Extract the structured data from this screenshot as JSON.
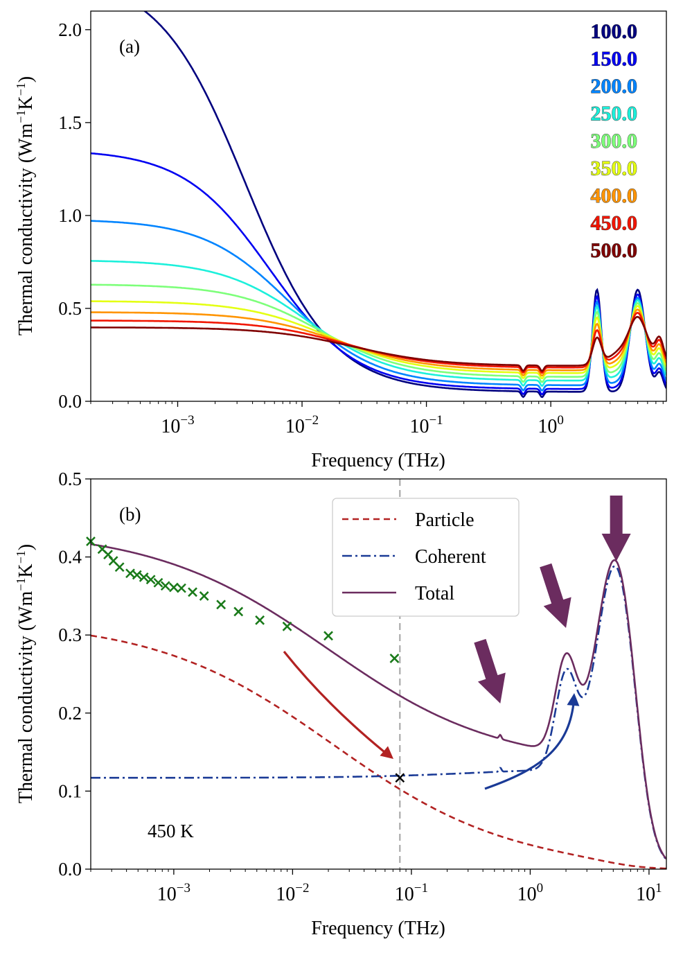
{
  "chart_data": [
    {
      "panel": "(a)",
      "type": "line",
      "xscale": "log",
      "xlim": [
        0.0002,
        8.5
      ],
      "ylim": [
        0.0,
        2.1
      ],
      "xlabel": "Frequency (THz)",
      "ylabel_main": "Thermal conductivity (Wm",
      "ylabel_sup1": "−1",
      "ylabel_mid": "K",
      "ylabel_sup2": "−1",
      "ylabel_end": ")",
      "xtick_base": "10",
      "xticks": [
        {
          "value": 0.001,
          "exp": "−3"
        },
        {
          "value": 0.01,
          "exp": "−2"
        },
        {
          "value": 0.1,
          "exp": "−1"
        },
        {
          "value": 1,
          "exp": "0"
        }
      ],
      "yticks": [
        {
          "value": 0.0,
          "label": "0.0"
        },
        {
          "value": 0.5,
          "label": "0.5"
        },
        {
          "value": 1.0,
          "label": "1.0"
        },
        {
          "value": 1.5,
          "label": "1.5"
        },
        {
          "value": 2.0,
          "label": "2.0"
        }
      ],
      "legend_position": "top-right",
      "series": [
        {
          "name": "100.0",
          "color": "#00007f",
          "k0": 2.3,
          "tau_half": 0.0035,
          "min": 0.05,
          "tail": 0.3
        },
        {
          "name": "150.0",
          "color": "#0000f1",
          "k0": 1.355,
          "tau_half": 0.0055,
          "min": 0.065,
          "tail": 0.29
        },
        {
          "name": "200.0",
          "color": "#0084ff",
          "k0": 0.98,
          "tau_half": 0.008,
          "min": 0.085,
          "tail": 0.28
        },
        {
          "name": "250.0",
          "color": "#1cf0db",
          "k0": 0.76,
          "tau_half": 0.011,
          "min": 0.11,
          "tail": 0.27
        },
        {
          "name": "300.0",
          "color": "#7dff7a",
          "k0": 0.63,
          "tau_half": 0.014,
          "min": 0.13,
          "tail": 0.26
        },
        {
          "name": "350.0",
          "color": "#e4ff13",
          "k0": 0.54,
          "tau_half": 0.017,
          "min": 0.15,
          "tail": 0.25
        },
        {
          "name": "400.0",
          "color": "#ff9400",
          "k0": 0.48,
          "tau_half": 0.02,
          "min": 0.165,
          "tail": 0.245
        },
        {
          "name": "450.0",
          "color": "#f11500",
          "k0": 0.435,
          "tau_half": 0.023,
          "min": 0.18,
          "tail": 0.24
        },
        {
          "name": "500.0",
          "color": "#7f0000",
          "k0": 0.398,
          "tau_half": 0.026,
          "min": 0.19,
          "tail": 0.235
        }
      ]
    },
    {
      "panel": "(b)",
      "type": "line",
      "xscale": "log",
      "xlim": [
        0.0002,
        14
      ],
      "ylim": [
        0.0,
        0.5
      ],
      "xlabel": "Frequency (THz)",
      "ylabel_main": "Thermal conductivity (Wm",
      "ylabel_sup1": "−1",
      "ylabel_mid": "K",
      "ylabel_sup2": "−1",
      "ylabel_end": ")",
      "annotation": "450 K",
      "crossover_frequency": 0.08,
      "crossover_value": 0.117,
      "xtick_base": "10",
      "xticks": [
        {
          "value": 0.001,
          "exp": "−3"
        },
        {
          "value": 0.01,
          "exp": "−2"
        },
        {
          "value": 0.1,
          "exp": "−1"
        },
        {
          "value": 1,
          "exp": "0"
        },
        {
          "value": 10,
          "exp": "1"
        }
      ],
      "yticks": [
        {
          "value": 0.0,
          "label": "0.0"
        },
        {
          "value": 0.1,
          "label": "0.1"
        },
        {
          "value": 0.2,
          "label": "0.2"
        },
        {
          "value": 0.3,
          "label": "0.3"
        },
        {
          "value": 0.4,
          "label": "0.4"
        },
        {
          "value": 0.5,
          "label": "0.5"
        }
      ],
      "legend_position": "top-right",
      "series": [
        {
          "name": "Particle",
          "color": "#b22222",
          "style": "dashed",
          "k0": 0.319,
          "tau_half": 0.022
        },
        {
          "name": "Coherent",
          "color": "#1a3a96",
          "style": "dashdot",
          "base": 0.117
        },
        {
          "name": "Total",
          "color": "#6b2c5f",
          "style": "solid"
        }
      ],
      "markers": {
        "color": "#1a7a1a",
        "shape": "x",
        "x": [
          0.0002,
          0.00025,
          0.00028,
          0.00031,
          0.00035,
          0.00043,
          0.00049,
          0.00056,
          0.00064,
          0.00074,
          0.00085,
          0.001,
          0.00116,
          0.00144,
          0.0018,
          0.0025,
          0.0035,
          0.0053,
          0.009,
          0.02,
          0.072
        ],
        "y": [
          0.42,
          0.41,
          0.403,
          0.395,
          0.387,
          0.379,
          0.377,
          0.374,
          0.371,
          0.367,
          0.363,
          0.361,
          0.36,
          0.355,
          0.35,
          0.339,
          0.33,
          0.319,
          0.311,
          0.299,
          0.27
        ]
      },
      "arrows_peaks_THz": [
        0.56,
        2.0,
        5.3
      ]
    }
  ]
}
